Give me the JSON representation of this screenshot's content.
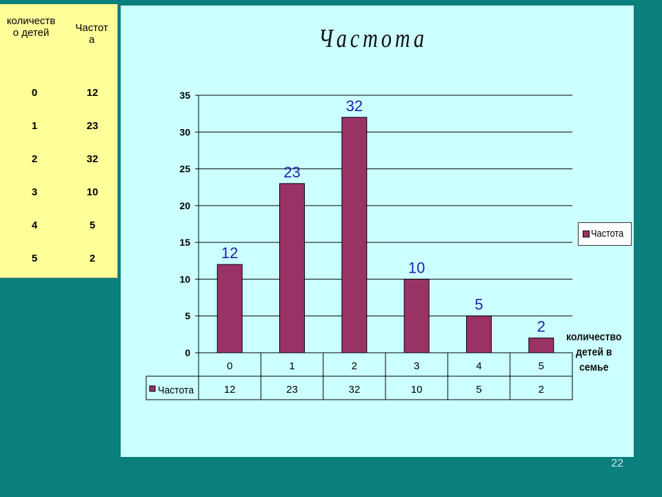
{
  "slide_number": "22",
  "side_table": {
    "headers": [
      "количество детей",
      "Частота"
    ],
    "rows": [
      [
        "0",
        "12"
      ],
      [
        "1",
        "23"
      ],
      [
        "2",
        "32"
      ],
      [
        "3",
        "10"
      ],
      [
        "4",
        "5"
      ],
      [
        "5",
        "2"
      ]
    ]
  },
  "chart_data": {
    "type": "bar",
    "title": "Частота",
    "categories": [
      "0",
      "1",
      "2",
      "3",
      "4",
      "5"
    ],
    "series": [
      {
        "name": "Частота",
        "values": [
          12,
          23,
          32,
          10,
          5,
          2
        ]
      }
    ],
    "xlabel": "количество детей в семье",
    "ylabel": "",
    "ylim": [
      0,
      35
    ],
    "yticks": [
      0,
      5,
      10,
      15,
      20,
      25,
      30,
      35
    ],
    "grid": true,
    "legend": "right",
    "data_table": true,
    "colors": {
      "bar": "#993366",
      "data_label": "#1f1fb0"
    }
  }
}
